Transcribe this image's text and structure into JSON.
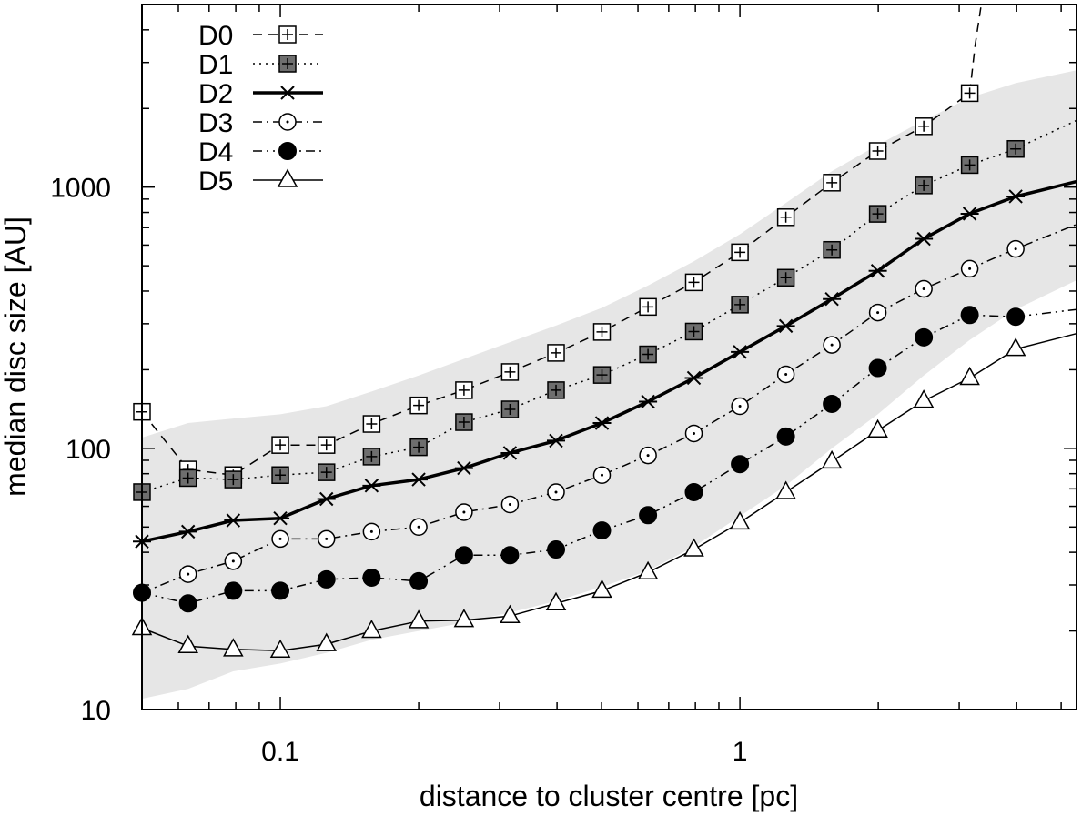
{
  "chart_data": {
    "type": "line",
    "xscale": "log",
    "yscale": "log",
    "xlim": [
      0.05,
      5.4
    ],
    "ylim": [
      10,
      5000
    ],
    "xlabel": "distance to cluster centre [pc]",
    "ylabel": "median disc size [AU]",
    "xticks": [
      {
        "value": 0.1,
        "label": "0.1"
      },
      {
        "value": 1,
        "label": "1"
      }
    ],
    "yticks": [
      {
        "value": 10,
        "label": "10"
      },
      {
        "value": 100,
        "label": "100"
      },
      {
        "value": 1000,
        "label": "1000"
      }
    ],
    "legend_position": "top-left",
    "band": {
      "color": "#e6e6e6",
      "x": [
        0.05,
        0.063,
        0.079,
        0.1,
        0.126,
        0.158,
        0.2,
        0.251,
        0.316,
        0.398,
        0.501,
        0.631,
        0.794,
        1.0,
        1.259,
        1.585,
        1.995,
        2.512,
        3.162,
        3.981,
        5.4
      ],
      "upper": [
        110,
        125,
        130,
        135,
        145,
        165,
        190,
        220,
        255,
        295,
        345,
        420,
        520,
        660,
        870,
        1150,
        1450,
        1800,
        2200,
        2500,
        2800
      ],
      "lower": [
        11,
        12,
        14,
        15,
        16.5,
        18.5,
        20,
        21.5,
        23.5,
        26,
        29.5,
        34,
        42,
        55,
        72,
        100,
        135,
        190,
        260,
        340,
        440
      ]
    },
    "series": [
      {
        "name": "D0",
        "line": "dashed",
        "marker": "square-open",
        "x": [
          0.05,
          0.063,
          0.079,
          0.1,
          0.126,
          0.158,
          0.2,
          0.251,
          0.316,
          0.398,
          0.501,
          0.631,
          0.794,
          1.0,
          1.259,
          1.585,
          1.995,
          2.512,
          3.162
        ],
        "y": [
          138,
          83,
          79,
          103,
          103,
          124,
          146,
          167,
          196,
          232,
          279,
          348,
          432,
          563,
          767,
          1040,
          1375,
          1710,
          2290
        ],
        "tail": {
          "x": [
            3.162,
            3.25,
            3.35
          ],
          "y": [
            2290,
            3500,
            5000
          ]
        }
      },
      {
        "name": "D1",
        "line": "dotted",
        "marker": "square-filled",
        "x": [
          0.05,
          0.063,
          0.079,
          0.1,
          0.126,
          0.158,
          0.2,
          0.251,
          0.316,
          0.398,
          0.501,
          0.631,
          0.794,
          1.0,
          1.259,
          1.585,
          1.995,
          2.512,
          3.162,
          3.981
        ],
        "y": [
          68,
          77,
          76,
          79,
          81,
          93,
          101,
          126,
          141,
          167,
          191,
          229,
          280,
          355,
          450,
          575,
          790,
          1015,
          1215,
          1400
        ],
        "end": {
          "x": 5.4,
          "y": 1800
        }
      },
      {
        "name": "D2",
        "line": "solid-thick",
        "marker": "asterisk",
        "x": [
          0.05,
          0.063,
          0.079,
          0.1,
          0.126,
          0.158,
          0.2,
          0.251,
          0.316,
          0.398,
          0.501,
          0.631,
          0.794,
          1.0,
          1.259,
          1.585,
          1.995,
          2.512,
          3.162,
          3.981
        ],
        "y": [
          44,
          48,
          53,
          54,
          64,
          72,
          76,
          84,
          96,
          107,
          125,
          151,
          186,
          234,
          294,
          373,
          478,
          634,
          791,
          921
        ],
        "end": {
          "x": 5.4,
          "y": 1050
        }
      },
      {
        "name": "D3",
        "line": "dash-dot",
        "marker": "circle-open",
        "x": [
          0.05,
          0.063,
          0.079,
          0.1,
          0.126,
          0.158,
          0.2,
          0.251,
          0.316,
          0.398,
          0.501,
          0.631,
          0.794,
          1.0,
          1.259,
          1.585,
          1.995,
          2.512,
          3.162,
          3.981
        ],
        "y": [
          28,
          33,
          37,
          45,
          45,
          48,
          50,
          57,
          61,
          68,
          79,
          94,
          114,
          145,
          192,
          249,
          331,
          408,
          487,
          580
        ],
        "end": {
          "x": 5.4,
          "y": 720
        }
      },
      {
        "name": "D4",
        "line": "dash-dot-dot",
        "marker": "circle-filled",
        "x": [
          0.05,
          0.063,
          0.079,
          0.1,
          0.126,
          0.158,
          0.2,
          0.251,
          0.316,
          0.398,
          0.501,
          0.631,
          0.794,
          1.0,
          1.259,
          1.585,
          1.995,
          2.512,
          3.162,
          3.981
        ],
        "y": [
          28,
          25.5,
          28.5,
          28.5,
          31.5,
          32,
          31,
          39,
          39,
          41,
          48.5,
          55.5,
          68,
          87,
          111,
          148,
          203,
          266,
          324,
          319
        ],
        "end": {
          "x": 5.4,
          "y": 340
        }
      },
      {
        "name": "D5",
        "line": "solid-thin",
        "marker": "triangle-open",
        "x": [
          0.05,
          0.063,
          0.079,
          0.1,
          0.126,
          0.158,
          0.2,
          0.251,
          0.316,
          0.398,
          0.501,
          0.631,
          0.794,
          1.0,
          1.259,
          1.585,
          1.995,
          2.512,
          3.162,
          3.981
        ],
        "y": [
          20.5,
          17.5,
          17,
          16.8,
          17.8,
          20,
          21.8,
          22,
          22.8,
          25.5,
          28.5,
          33.5,
          41,
          52,
          68,
          89,
          117,
          152,
          186,
          240
        ],
        "end": {
          "x": 5.4,
          "y": 275
        }
      }
    ]
  }
}
